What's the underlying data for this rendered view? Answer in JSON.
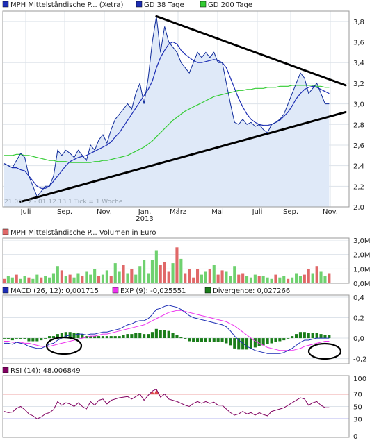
{
  "colors": {
    "price_line": "#0e2a9a",
    "price_fill": "#dfe9f8",
    "gd38": "#1c2db4",
    "gd200": "#33cc33",
    "trend": "#000000",
    "vol_up": "#6fd16f",
    "vol_down": "#e06868",
    "macd": "#1c2db4",
    "exp": "#ee33ee",
    "divergence": "#1a7d1a",
    "rsi": "#800060",
    "rsi70": "#e04848",
    "rsi30": "#6a6ae0"
  },
  "chart_data": [
    {
      "type": "line",
      "panel": "price",
      "legend": {
        "price": "MPH Mittelständische P... (Xetra)",
        "gd38": "GD 38 Tage",
        "gd200": "GD 200 Tage"
      },
      "footnote": "21.05.12 - 01.12.13   1 Tick = 1 Woche",
      "x_tick_labels": [
        "Juli",
        "Sep.",
        "Nov.",
        "Jan.",
        "März",
        "Mai",
        "Juli",
        "Sep.",
        "Nov."
      ],
      "year_label": "2013",
      "y_ticks": [
        "2,0",
        "2,2",
        "2,4",
        "2,6",
        "2,8",
        "3,0",
        "3,2",
        "3,4",
        "3,6",
        "3,8"
      ],
      "ylim": [
        2.0,
        3.9
      ],
      "x_weeks": 80,
      "series": [
        {
          "name": "MPH Mittelständische P... (Xetra)",
          "values": [
            2.42,
            2.4,
            2.38,
            2.45,
            2.52,
            2.48,
            2.3,
            2.2,
            2.1,
            2.15,
            2.2,
            2.2,
            2.3,
            2.55,
            2.5,
            2.55,
            2.52,
            2.48,
            2.55,
            2.5,
            2.45,
            2.6,
            2.55,
            2.65,
            2.7,
            2.62,
            2.75,
            2.85,
            2.9,
            2.95,
            3.0,
            2.95,
            3.1,
            3.2,
            3.0,
            3.25,
            3.6,
            3.85,
            3.5,
            3.75,
            3.6,
            3.55,
            3.5,
            3.4,
            3.35,
            3.3,
            3.4,
            3.5,
            3.45,
            3.5,
            3.45,
            3.5,
            3.4,
            3.4,
            3.2,
            3.0,
            2.82,
            2.8,
            2.85,
            2.8,
            2.82,
            2.78,
            2.8,
            2.75,
            2.72,
            2.8,
            2.82,
            2.85,
            2.9,
            3.0,
            3.1,
            3.2,
            3.3,
            3.25,
            3.1,
            3.15,
            3.2,
            3.1,
            3.0,
            3.0
          ]
        },
        {
          "name": "GD 38 Tage",
          "values": [
            2.42,
            2.4,
            2.38,
            2.38,
            2.36,
            2.35,
            2.3,
            2.25,
            2.2,
            2.18,
            2.18,
            2.2,
            2.25,
            2.3,
            2.35,
            2.4,
            2.44,
            2.46,
            2.48,
            2.49,
            2.5,
            2.52,
            2.54,
            2.56,
            2.58,
            2.6,
            2.63,
            2.68,
            2.72,
            2.78,
            2.84,
            2.9,
            2.96,
            3.02,
            3.08,
            3.14,
            3.22,
            3.35,
            3.45,
            3.52,
            3.58,
            3.6,
            3.58,
            3.52,
            3.48,
            3.45,
            3.42,
            3.4,
            3.4,
            3.41,
            3.42,
            3.43,
            3.42,
            3.4,
            3.35,
            3.25,
            3.15,
            3.05,
            2.97,
            2.9,
            2.85,
            2.82,
            2.8,
            2.79,
            2.79,
            2.8,
            2.82,
            2.84,
            2.88,
            2.92,
            2.98,
            3.05,
            3.1,
            3.14,
            3.16,
            3.17,
            3.16,
            3.14,
            3.12,
            3.1
          ]
        },
        {
          "name": "GD 200 Tage",
          "values": [
            2.5,
            2.5,
            2.5,
            2.51,
            2.51,
            2.5,
            2.5,
            2.49,
            2.48,
            2.47,
            2.46,
            2.45,
            2.45,
            2.44,
            2.44,
            2.44,
            2.43,
            2.43,
            2.43,
            2.43,
            2.43,
            2.43,
            2.44,
            2.44,
            2.45,
            2.45,
            2.46,
            2.47,
            2.48,
            2.49,
            2.5,
            2.52,
            2.54,
            2.56,
            2.58,
            2.61,
            2.64,
            2.68,
            2.72,
            2.76,
            2.8,
            2.84,
            2.87,
            2.9,
            2.93,
            2.95,
            2.97,
            2.99,
            3.01,
            3.03,
            3.05,
            3.07,
            3.08,
            3.09,
            3.1,
            3.11,
            3.12,
            3.13,
            3.13,
            3.14,
            3.14,
            3.15,
            3.15,
            3.15,
            3.16,
            3.16,
            3.16,
            3.17,
            3.17,
            3.17,
            3.18,
            3.18,
            3.18,
            3.18,
            3.18,
            3.18,
            3.17,
            3.17,
            3.16,
            3.16
          ]
        }
      ],
      "trendlines": [
        {
          "from": [
            4,
            2.05
          ],
          "to": [
            83,
            2.92
          ]
        },
        {
          "from": [
            37,
            3.85
          ],
          "to": [
            83,
            3.18
          ]
        }
      ]
    },
    {
      "type": "bar",
      "panel": "volume",
      "legend": "MPH Mittelständische P... Volumen in Euro",
      "y_ticks": [
        "0,0M",
        "1,0M",
        "2,0M",
        "3,0M"
      ],
      "ylim": [
        0,
        3.0
      ],
      "values": [
        0.3,
        0.5,
        0.4,
        0.6,
        0.3,
        0.5,
        0.4,
        0.3,
        0.6,
        0.4,
        0.5,
        0.4,
        0.7,
        1.2,
        0.9,
        0.5,
        0.6,
        0.4,
        0.7,
        0.5,
        0.8,
        0.6,
        1.0,
        0.5,
        0.6,
        0.9,
        0.5,
        1.4,
        0.8,
        1.3,
        0.7,
        1.0,
        0.6,
        1.2,
        1.6,
        0.7,
        1.6,
        2.3,
        1.3,
        1.5,
        0.8,
        1.4,
        2.5,
        1.7,
        0.7,
        1.0,
        0.4,
        1.0,
        0.6,
        0.8,
        1.0,
        1.3,
        0.6,
        0.9,
        0.8,
        0.5,
        1.2,
        0.6,
        0.7,
        0.5,
        0.4,
        0.6,
        0.5,
        0.5,
        0.4,
        0.3,
        0.6,
        0.4,
        0.5,
        0.3,
        0.4,
        0.7,
        0.5,
        0.6,
        1.0,
        0.7,
        1.2,
        0.8,
        0.5,
        0.7
      ],
      "direction": [
        "d",
        "u",
        "u",
        "d",
        "u",
        "u",
        "d",
        "u",
        "u",
        "d",
        "u",
        "u",
        "u",
        "u",
        "d",
        "u",
        "d",
        "u",
        "u",
        "d",
        "u",
        "u",
        "u",
        "d",
        "u",
        "u",
        "d",
        "u",
        "u",
        "d",
        "u",
        "d",
        "u",
        "u",
        "u",
        "u",
        "u",
        "u",
        "d",
        "d",
        "d",
        "u",
        "d",
        "u",
        "d",
        "d",
        "d",
        "d",
        "u",
        "u",
        "d",
        "u",
        "d",
        "d",
        "u",
        "u",
        "u",
        "d",
        "d",
        "u",
        "u",
        "u",
        "d",
        "u",
        "u",
        "u",
        "d",
        "u",
        "u",
        "d",
        "u",
        "u",
        "u",
        "d",
        "d",
        "u",
        "d",
        "u",
        "u",
        "d"
      ]
    },
    {
      "type": "line",
      "panel": "macd",
      "legend": {
        "macd": "MACD (26, 12): 0,001715",
        "exp": "EXP (9): -0,025551",
        "divergence": "Divergence: 0,027266"
      },
      "y_ticks": [
        "-0,2",
        "0,0",
        "0,2",
        "0,4"
      ],
      "ylim": [
        -0.25,
        0.42
      ],
      "series": [
        {
          "name": "MACD (26, 12): 0,001715",
          "values": [
            -0.05,
            -0.05,
            -0.06,
            -0.04,
            -0.05,
            -0.06,
            -0.08,
            -0.09,
            -0.1,
            -0.1,
            -0.08,
            -0.06,
            -0.05,
            -0.02,
            0.0,
            0.02,
            0.03,
            0.03,
            0.04,
            0.04,
            0.03,
            0.04,
            0.04,
            0.05,
            0.06,
            0.06,
            0.07,
            0.08,
            0.09,
            0.11,
            0.13,
            0.14,
            0.16,
            0.17,
            0.17,
            0.19,
            0.23,
            0.28,
            0.29,
            0.31,
            0.32,
            0.31,
            0.3,
            0.28,
            0.25,
            0.22,
            0.2,
            0.19,
            0.18,
            0.17,
            0.16,
            0.15,
            0.14,
            0.13,
            0.11,
            0.07,
            0.02,
            -0.02,
            -0.05,
            -0.08,
            -0.1,
            -0.12,
            -0.13,
            -0.14,
            -0.15,
            -0.15,
            -0.15,
            -0.15,
            -0.14,
            -0.12,
            -0.1,
            -0.07,
            -0.04,
            -0.02,
            -0.02,
            -0.01,
            0.0,
            0.0,
            0.0,
            0.0
          ]
        },
        {
          "name": "EXP (9): -0,025551",
          "values": [
            -0.03,
            -0.03,
            -0.04,
            -0.04,
            -0.04,
            -0.05,
            -0.05,
            -0.06,
            -0.07,
            -0.08,
            -0.08,
            -0.08,
            -0.07,
            -0.06,
            -0.05,
            -0.04,
            -0.03,
            -0.02,
            -0.01,
            0.0,
            0.01,
            0.02,
            0.02,
            0.03,
            0.04,
            0.04,
            0.05,
            0.06,
            0.07,
            0.08,
            0.09,
            0.1,
            0.11,
            0.12,
            0.13,
            0.15,
            0.17,
            0.19,
            0.21,
            0.23,
            0.25,
            0.26,
            0.27,
            0.27,
            0.26,
            0.25,
            0.24,
            0.23,
            0.22,
            0.21,
            0.2,
            0.19,
            0.18,
            0.17,
            0.16,
            0.14,
            0.12,
            0.09,
            0.06,
            0.03,
            0.0,
            -0.03,
            -0.05,
            -0.07,
            -0.09,
            -0.1,
            -0.11,
            -0.12,
            -0.12,
            -0.12,
            -0.12,
            -0.11,
            -0.1,
            -0.08,
            -0.07,
            -0.06,
            -0.05,
            -0.04,
            -0.03,
            -0.03
          ]
        },
        {
          "name": "Divergence: 0,027266",
          "values": [
            0.0,
            -0.01,
            -0.02,
            0.0,
            -0.01,
            -0.01,
            -0.03,
            -0.03,
            -0.03,
            -0.02,
            0.0,
            0.02,
            0.02,
            0.04,
            0.05,
            0.06,
            0.06,
            0.05,
            0.05,
            0.04,
            0.02,
            0.02,
            0.02,
            0.02,
            0.02,
            0.02,
            0.02,
            0.02,
            0.02,
            0.03,
            0.04,
            0.04,
            0.05,
            0.05,
            0.04,
            0.04,
            0.06,
            0.09,
            0.08,
            0.08,
            0.07,
            0.05,
            0.03,
            0.01,
            -0.01,
            -0.03,
            -0.04,
            -0.04,
            -0.04,
            -0.04,
            -0.04,
            -0.04,
            -0.04,
            -0.04,
            -0.05,
            -0.07,
            -0.1,
            -0.11,
            -0.11,
            -0.11,
            -0.1,
            -0.09,
            -0.08,
            -0.07,
            -0.06,
            -0.05,
            -0.04,
            -0.03,
            -0.02,
            0.0,
            0.02,
            0.04,
            0.06,
            0.06,
            0.05,
            0.05,
            0.05,
            0.04,
            0.03,
            0.03
          ]
        }
      ]
    },
    {
      "type": "line",
      "panel": "rsi",
      "legend": "RSI (14): 48,006849",
      "y_ticks": [
        "0",
        "30",
        "50",
        "70",
        "100"
      ],
      "ylim": [
        0,
        100
      ],
      "reference_lines": [
        70,
        30
      ],
      "series": [
        {
          "name": "RSI (14): 48,006849",
          "values": [
            42,
            40,
            41,
            47,
            50,
            45,
            38,
            35,
            30,
            33,
            38,
            40,
            45,
            58,
            52,
            56,
            54,
            50,
            56,
            50,
            46,
            58,
            52,
            60,
            62,
            54,
            60,
            62,
            64,
            65,
            66,
            62,
            66,
            70,
            60,
            68,
            75,
            78,
            65,
            70,
            62,
            60,
            58,
            55,
            52,
            50,
            55,
            58,
            55,
            58,
            55,
            57,
            52,
            52,
            46,
            40,
            36,
            38,
            42,
            38,
            40,
            36,
            40,
            37,
            35,
            42,
            44,
            46,
            48,
            52,
            56,
            60,
            64,
            62,
            52,
            56,
            58,
            52,
            48,
            48
          ]
        }
      ]
    }
  ]
}
